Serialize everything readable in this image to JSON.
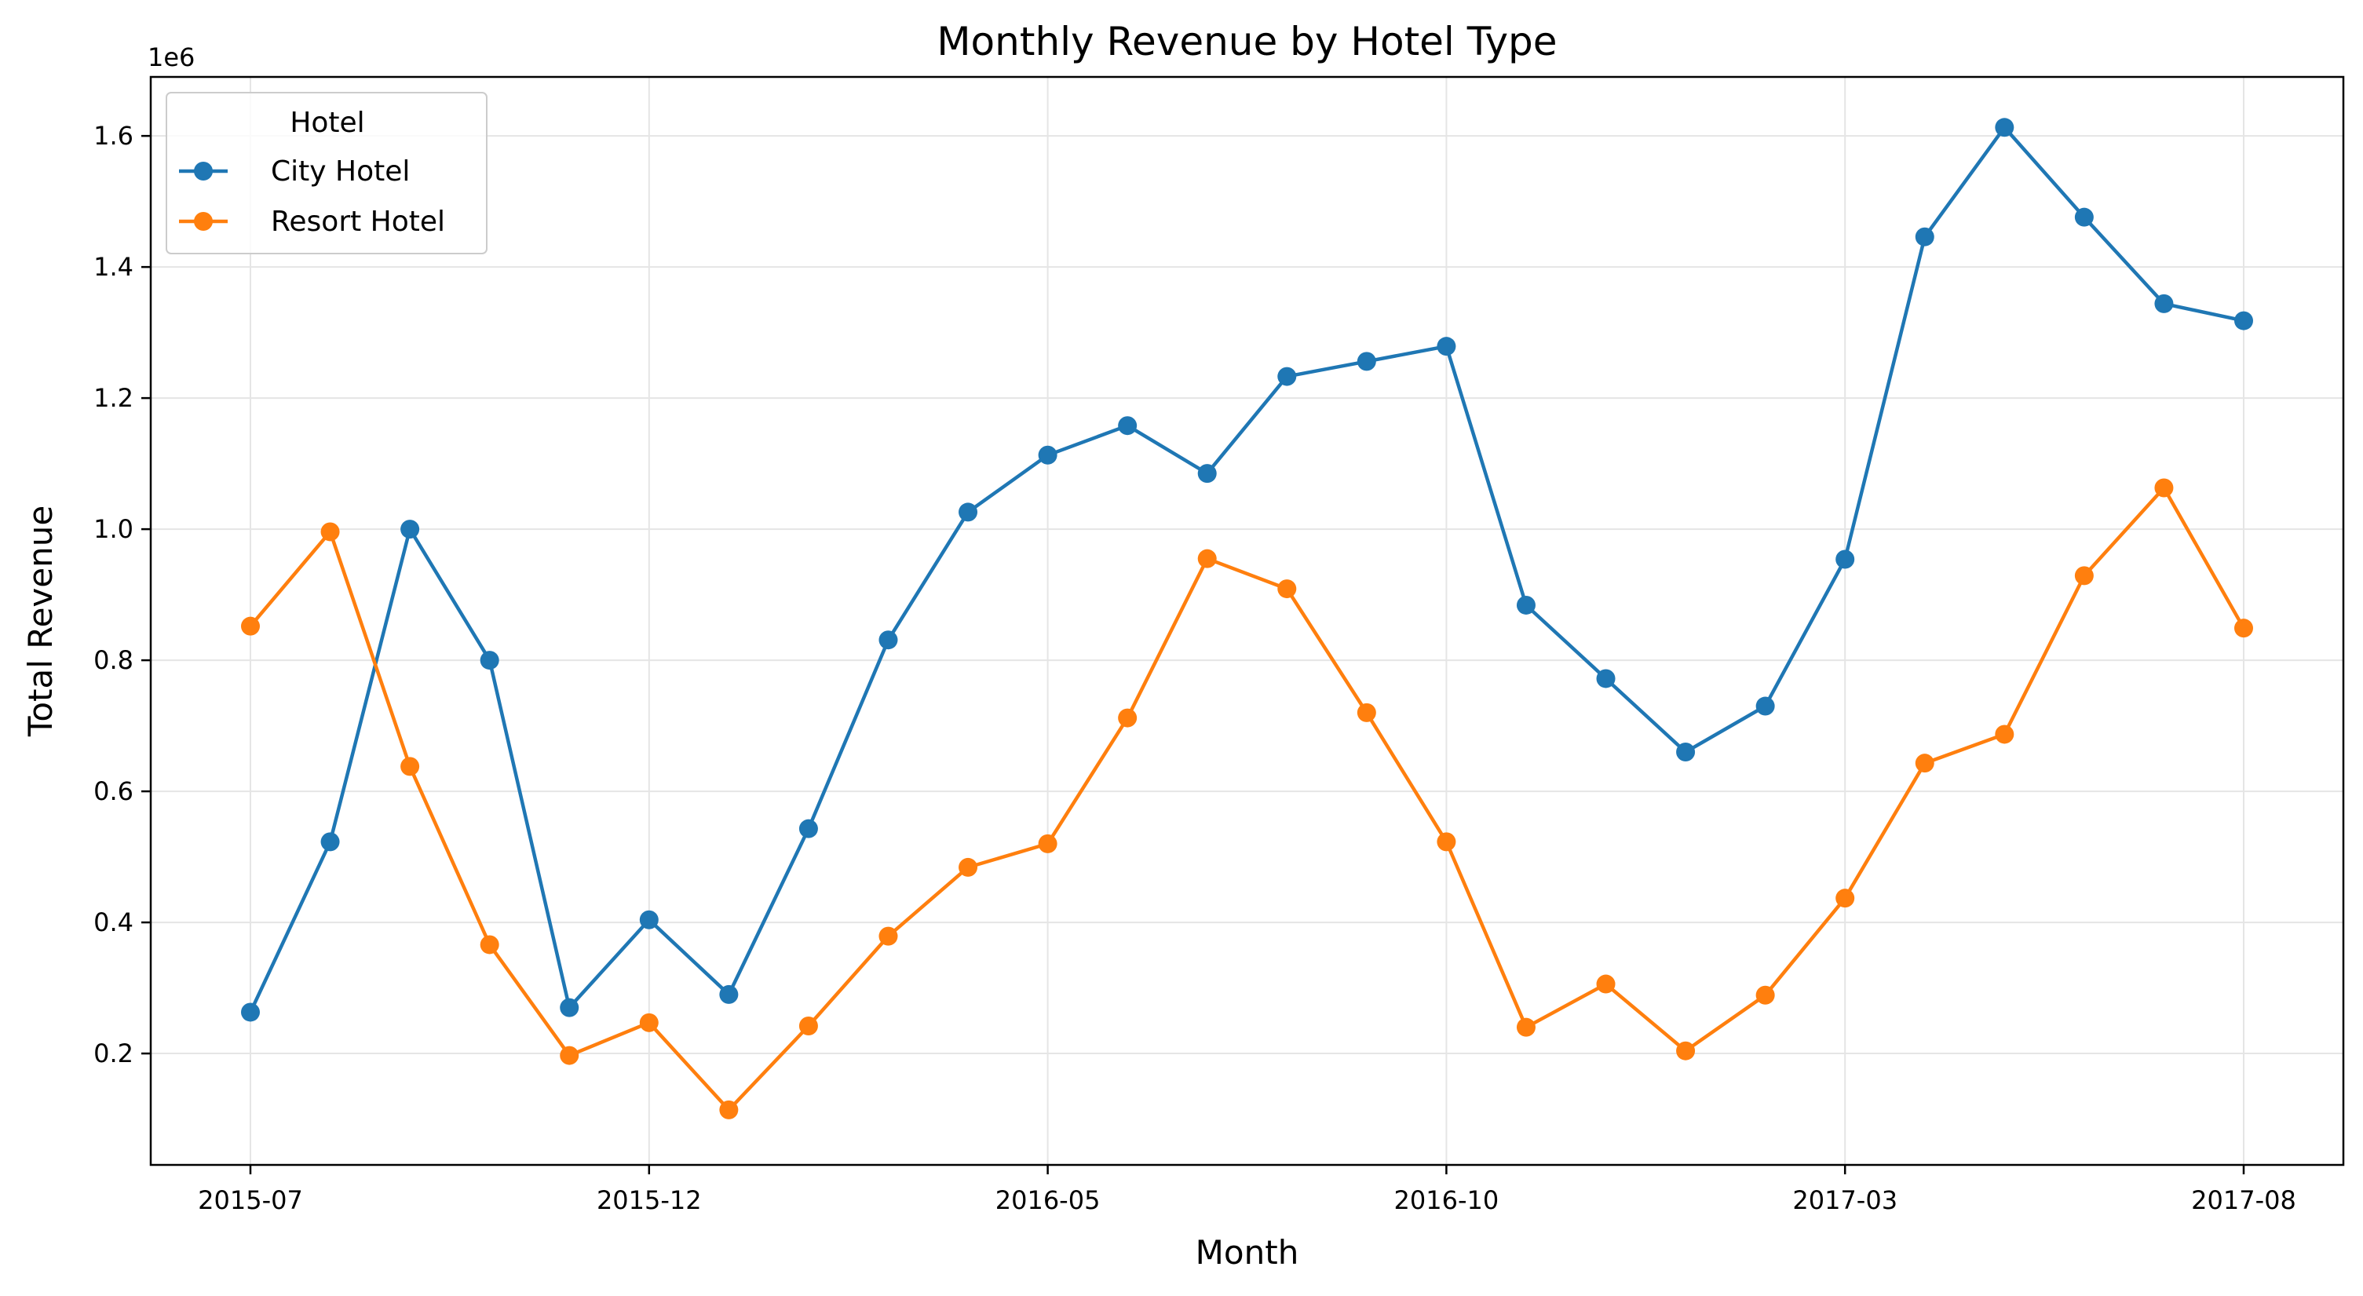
{
  "chart_data": {
    "type": "line",
    "title": "Monthly Revenue by Hotel Type",
    "xlabel": "Month",
    "ylabel": "Total Revenue",
    "y_offset_label": "1e6",
    "x": [
      "2015-07",
      "2015-08",
      "2015-09",
      "2015-10",
      "2015-11",
      "2015-12",
      "2016-01",
      "2016-02",
      "2016-03",
      "2016-04",
      "2016-05",
      "2016-06",
      "2016-07",
      "2016-08",
      "2016-09",
      "2016-10",
      "2016-11",
      "2016-12",
      "2017-01",
      "2017-02",
      "2017-03",
      "2017-04",
      "2017-05",
      "2017-06",
      "2017-07",
      "2017-08"
    ],
    "x_ticks": [
      "2015-07",
      "2015-12",
      "2016-05",
      "2016-10",
      "2017-03",
      "2017-08"
    ],
    "y_ticks": [
      "0.2",
      "0.4",
      "0.6",
      "0.8",
      "1.0",
      "1.2",
      "1.4",
      "1.6"
    ],
    "ylim": [
      0.03,
      1.69
    ],
    "grid": true,
    "legend": {
      "title": "Hotel",
      "placement": "top-left"
    },
    "series": [
      {
        "name": "City Hotel",
        "color": "#1f77b4",
        "values": [
          0.263,
          0.523,
          1.0,
          0.8,
          0.27,
          0.404,
          0.29,
          0.543,
          0.831,
          1.026,
          1.113,
          1.158,
          1.085,
          1.233,
          1.256,
          1.279,
          0.884,
          0.772,
          0.66,
          0.73,
          0.954,
          1.446,
          1.613,
          1.476,
          1.344,
          1.318
        ]
      },
      {
        "name": "Resort Hotel",
        "color": "#ff7f0e",
        "values": [
          0.852,
          0.996,
          0.638,
          0.366,
          0.197,
          0.247,
          0.114,
          0.242,
          0.379,
          0.484,
          0.52,
          0.712,
          0.955,
          0.909,
          0.72,
          0.523,
          0.24,
          0.306,
          0.204,
          0.289,
          0.437,
          0.643,
          0.687,
          0.929,
          1.063,
          0.849
        ]
      }
    ]
  }
}
